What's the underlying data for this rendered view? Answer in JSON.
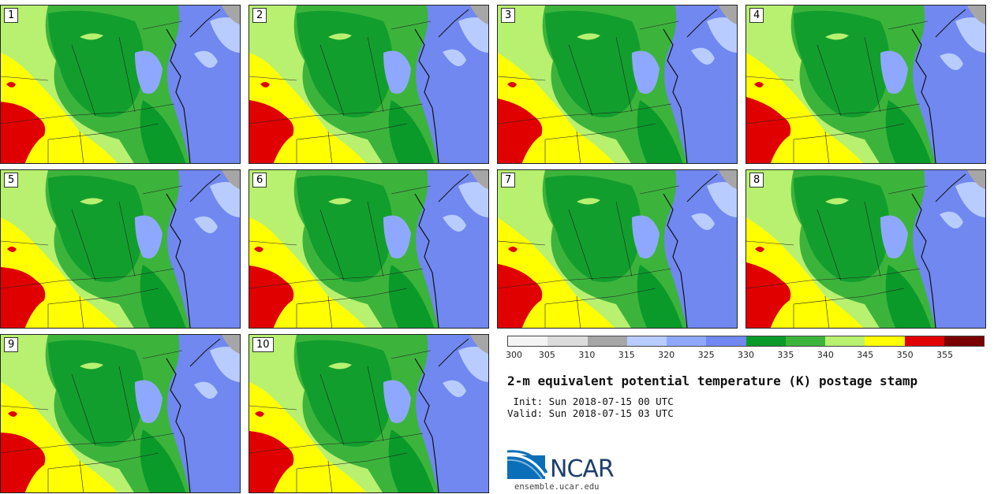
{
  "panels": [
    {
      "label": "1"
    },
    {
      "label": "2"
    },
    {
      "label": "3"
    },
    {
      "label": "4"
    },
    {
      "label": "5"
    },
    {
      "label": "6"
    },
    {
      "label": "7"
    },
    {
      "label": "8"
    },
    {
      "label": "9"
    },
    {
      "label": "10"
    }
  ],
  "colorbar": {
    "colors": [
      "#f4f4f4",
      "#dcdcdc",
      "#a6a6a6",
      "#b8ccff",
      "#8fa8ff",
      "#7088f0",
      "#0a9a2a",
      "#3cb43c",
      "#b8f070",
      "#ffff00",
      "#e00000",
      "#7a0000"
    ],
    "ticks": [
      "300",
      "305",
      "310",
      "315",
      "320",
      "325",
      "330",
      "335",
      "340",
      "345",
      "350",
      "355"
    ]
  },
  "title": "2-m equivalent potential temperature (K) postage stamp",
  "init": " Init: Sun 2018-07-15 00 UTC",
  "valid": "Valid: Sun 2018-07-15 03 UTC",
  "logo": {
    "text": "NCAR"
  },
  "site": "ensemble.ucar.edu"
}
